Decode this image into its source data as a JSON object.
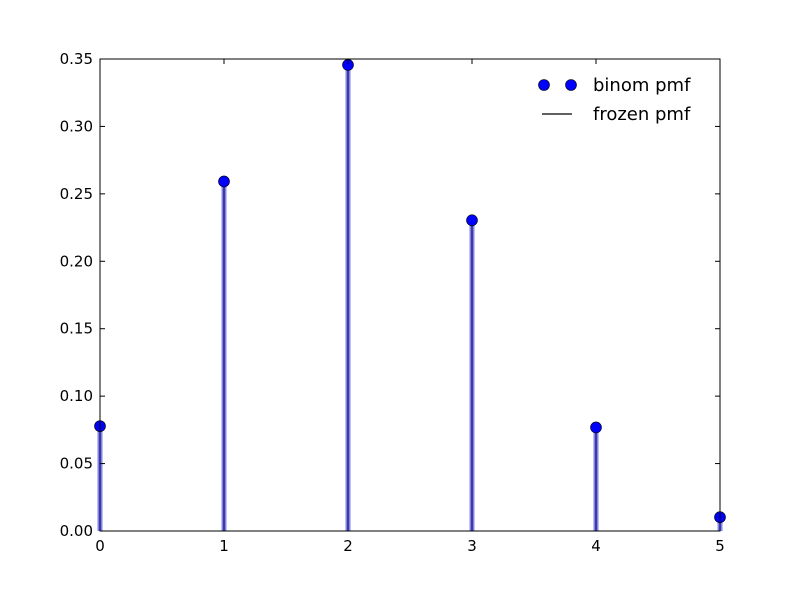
{
  "chart_data": {
    "type": "scatter",
    "title": "",
    "xlabel": "",
    "ylabel": "",
    "xlim": [
      0,
      5
    ],
    "ylim": [
      0,
      0.35
    ],
    "x_ticks": [
      0,
      1,
      2,
      3,
      4,
      5
    ],
    "x_tick_labels": [
      "0",
      "1",
      "2",
      "3",
      "4",
      "5"
    ],
    "y_ticks": [
      0,
      0.05,
      0.1,
      0.15,
      0.2,
      0.25,
      0.3,
      0.35
    ],
    "y_tick_labels": [
      "0.00",
      "0.05",
      "0.10",
      "0.15",
      "0.20",
      "0.25",
      "0.30",
      "0.35"
    ],
    "grid": false,
    "legend_position": "top-right",
    "series": [
      {
        "name": "binom pmf",
        "style": "markers with vertical lines",
        "color": "#0000ff",
        "x": [
          0,
          1,
          2,
          3,
          4,
          5
        ],
        "values": [
          0.07776,
          0.2592,
          0.3456,
          0.2304,
          0.0768,
          0.01024
        ]
      },
      {
        "name": "frozen pmf",
        "style": "vertical lines",
        "color": "#000000",
        "x": [
          0,
          1,
          2,
          3,
          4,
          5
        ],
        "values": [
          0.07776,
          0.2592,
          0.3456,
          0.2304,
          0.0768,
          0.01024
        ]
      }
    ]
  }
}
